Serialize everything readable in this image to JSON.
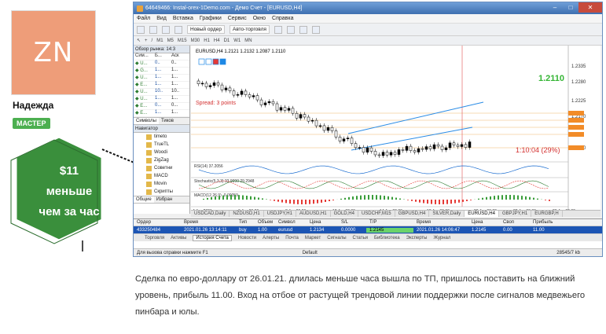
{
  "profile": {
    "initials": "ZN",
    "name": "Надежда",
    "badge": "МАСТЕР",
    "callout": [
      "$11",
      "меньше",
      "чем за час"
    ]
  },
  "window": {
    "title": "64649466: Instal-orex-1Demo.com - Демо Счет - [EURUSD,H4]",
    "menu": [
      "Файл",
      "Вид",
      "Вставка",
      "Графики",
      "Сервис",
      "Окно",
      "Справка"
    ],
    "toolbar": {
      "new_order": "Новый ордер",
      "autotrade": "Авто-торговля"
    },
    "timeframes": [
      "M1",
      "M5",
      "M15",
      "M30",
      "H1",
      "H4",
      "D1",
      "W1",
      "MN"
    ]
  },
  "market_watch": {
    "title": "Обзор рынка: 14:3",
    "columns": [
      "Сим...",
      "Б...",
      "Аск"
    ],
    "rows": [
      {
        "s": "U...",
        "b": "0..",
        "a": "0.."
      },
      {
        "s": "G...",
        "b": "1...",
        "a": "1..."
      },
      {
        "s": "U...",
        "b": "1...",
        "a": "1..."
      },
      {
        "s": "E...",
        "b": "1...",
        "a": "1..."
      },
      {
        "s": "U...",
        "b": "10..",
        "a": "10.."
      },
      {
        "s": "U...",
        "b": "1...",
        "a": "1..."
      },
      {
        "s": "E...",
        "b": "0...",
        "a": "0..."
      },
      {
        "s": "E...",
        "b": "1...",
        "a": "1..."
      }
    ],
    "tabs": [
      "Символы",
      "Тиков"
    ]
  },
  "navigator": {
    "title": "Навигатор",
    "items": [
      "timeto",
      "TrueTL",
      "Woodi",
      "ZigZag",
      "Советни",
      "MACD",
      "Movin",
      "Скрипты"
    ],
    "tabs": [
      "Общие",
      "Избран"
    ]
  },
  "chart": {
    "header": "EURUSD,H4 1.2121 1.2132 1.2087 1.2110",
    "spread_label": "Spread: 3 points",
    "price_label": "1.2110",
    "timer_label": "1:10:04 (29%)",
    "price_axis": [
      "1.2335",
      "1.2280",
      "1.2225",
      "1.2170",
      "1.2060"
    ],
    "indicator_labels": [
      "RSI(14) 37.2056",
      "Stochastic(5,3,3) 33.9990 29.2948",
      "MACD(12,26,9) -0.00059"
    ],
    "time_axis": [
      "4 Jan 2021",
      "6 Jan 00:00",
      "8 Jan 00:00",
      "12 Jan 00:00",
      "14 Jan 00:00",
      "18 Jan 00:00",
      "20 Jan 00:00",
      "22 Jan 00:00",
      "26 Jan 00:00"
    ]
  },
  "symbol_tabs": [
    "USDCAD,Daily",
    "NZDUSD,H1",
    "USDJPY,H1",
    "AUDUSD,H1",
    "GOLD,H4",
    "USDCHF,M15",
    "GBPUSD,H4",
    "SILVER,Daily",
    "EURUSD,H4",
    "GBPJPY,H1",
    "EURGBP,H"
  ],
  "history": {
    "columns": [
      "Ордер",
      "Время",
      "Тип",
      "Объем",
      "Символ",
      "Цена",
      "S/L",
      "T/P",
      "Время",
      "Цена",
      "Своп",
      "Прибыль"
    ],
    "row": [
      "433250484",
      "2021.01.26 13:14:11",
      "buy",
      "1.00",
      "eurusd",
      "1.2134",
      "0.0000",
      "1.2145",
      "2021.01.26 14:06:47",
      "1.2145",
      "0.00",
      "11.00"
    ],
    "tabs": [
      "Торговля",
      "Активы",
      "История Счета",
      "Новости",
      "Алерты",
      "Почта",
      "Маркет",
      "Сигналы",
      "Статьи",
      "Библиотека",
      "Эксперты",
      "Журнал"
    ]
  },
  "status": {
    "help": "Для вызова справки нажмите F1",
    "profile": "Default",
    "traffic": "28545/7 kb"
  },
  "caption": "Сделка по евро-доллару от 26.01.21. длилась меньше часа вышла по ТП,  пришлось поставить на ближний уровень, прибыль 11.00. Вход на отбое от растущей трендовой линии  поддержки  после сигналов  медвежьего пинбара и юлы."
}
